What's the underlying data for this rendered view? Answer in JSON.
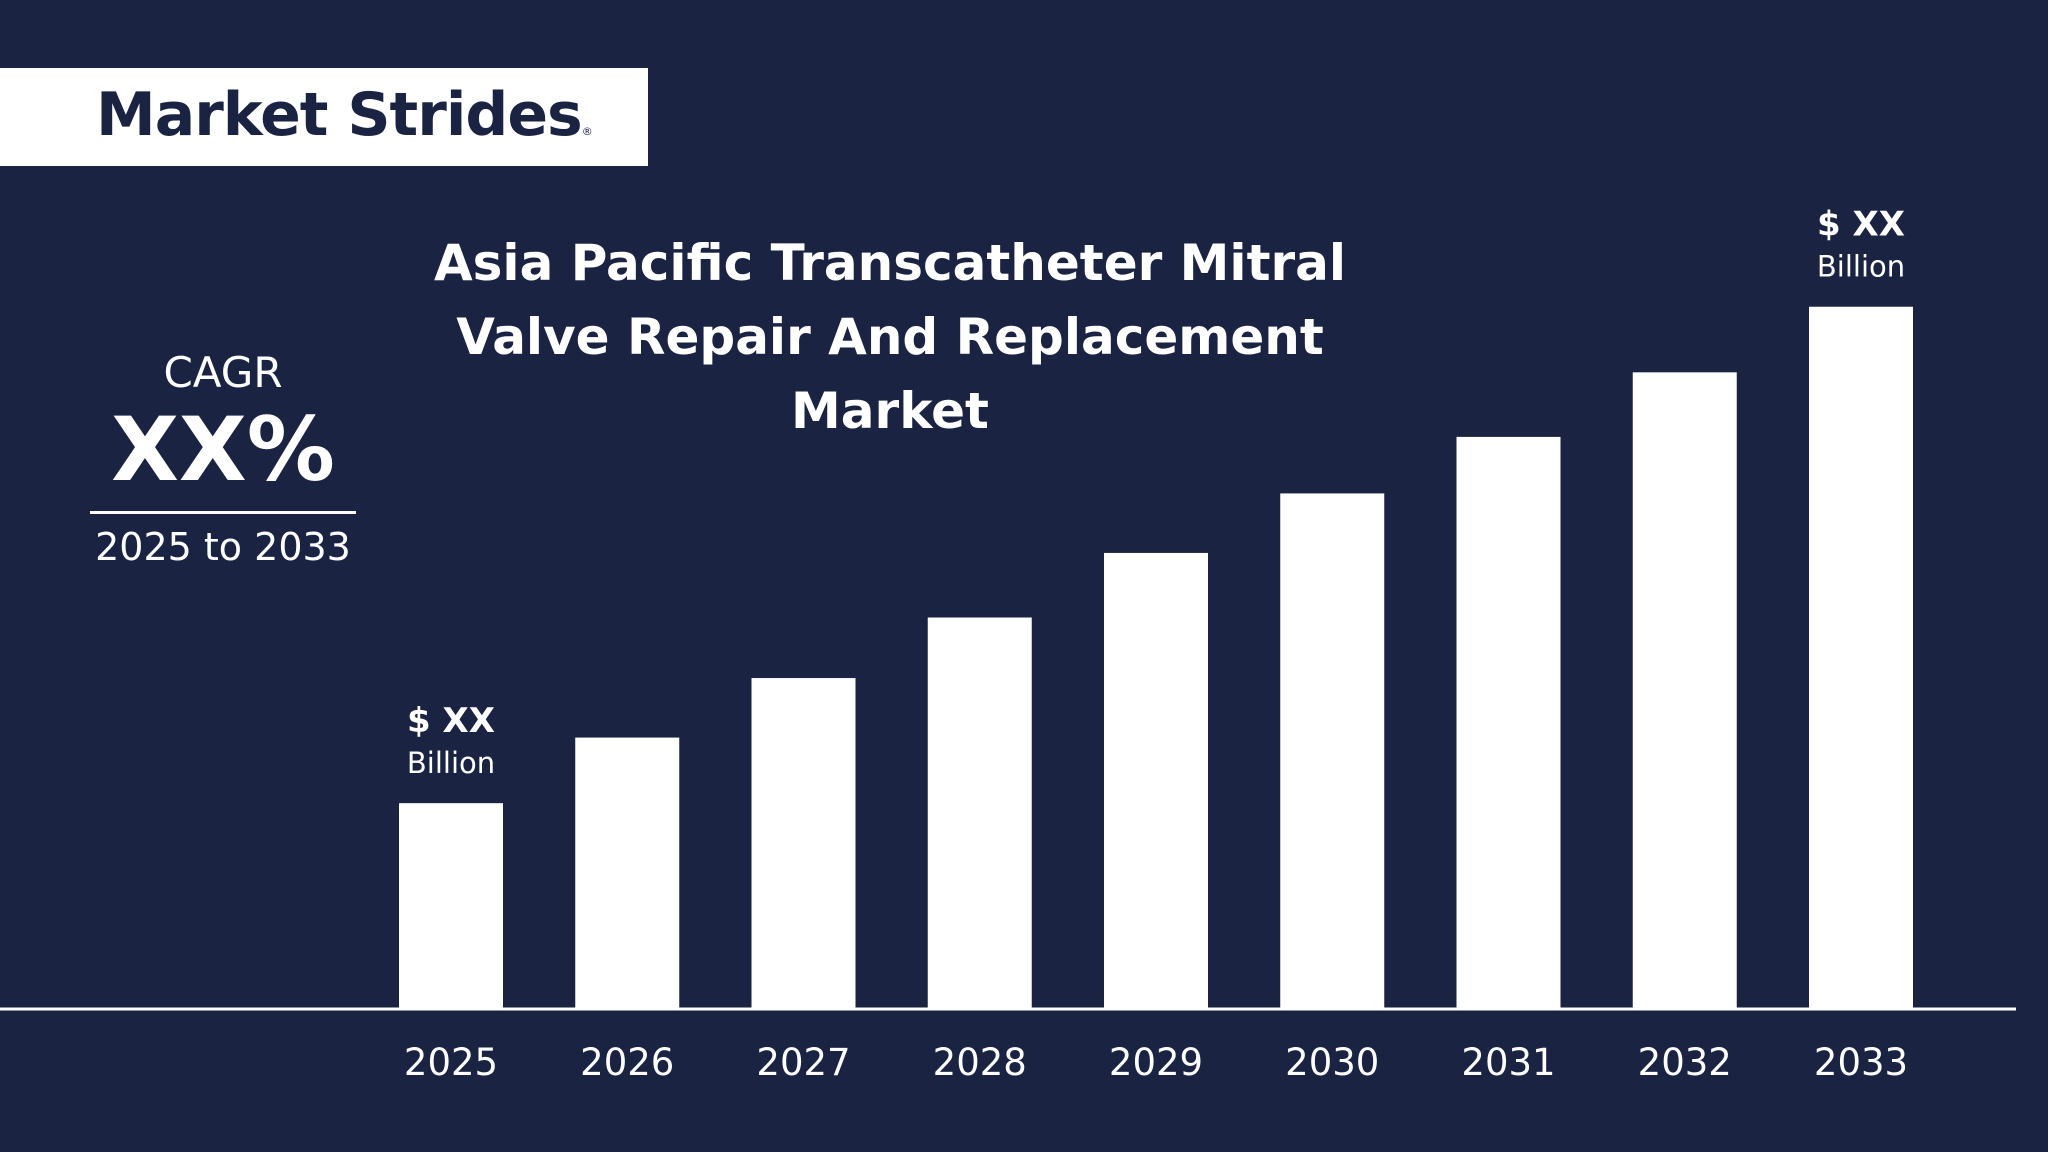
{
  "brand": {
    "name": "Market Strides",
    "reg_mark": "®"
  },
  "cagr": {
    "label": "CAGR",
    "value": "XX%",
    "period": "2025 to 2033"
  },
  "chart_data": {
    "type": "bar",
    "title": "Asia Pacific Transcatheter Mitral Valve Repair And Replacement Market",
    "xlabel": "",
    "ylabel": "",
    "grid": false,
    "categories": [
      "2025",
      "2026",
      "2027",
      "2028",
      "2029",
      "2030",
      "2031",
      "2032",
      "2033"
    ],
    "values": [
      20.4,
      26.9,
      32.8,
      38.8,
      45.2,
      51.1,
      56.7,
      63.1,
      69.6
    ],
    "ylim": [
      0,
      100
    ],
    "data_labels": [
      {
        "category": "2025",
        "amount": "$ XX",
        "unit": "Billion"
      },
      {
        "category": "2033",
        "amount": "$ XX",
        "unit": "Billion"
      }
    ],
    "colors": {
      "background": "#1a2342",
      "bar": "#ffffff",
      "axis": "#ffffff"
    }
  }
}
